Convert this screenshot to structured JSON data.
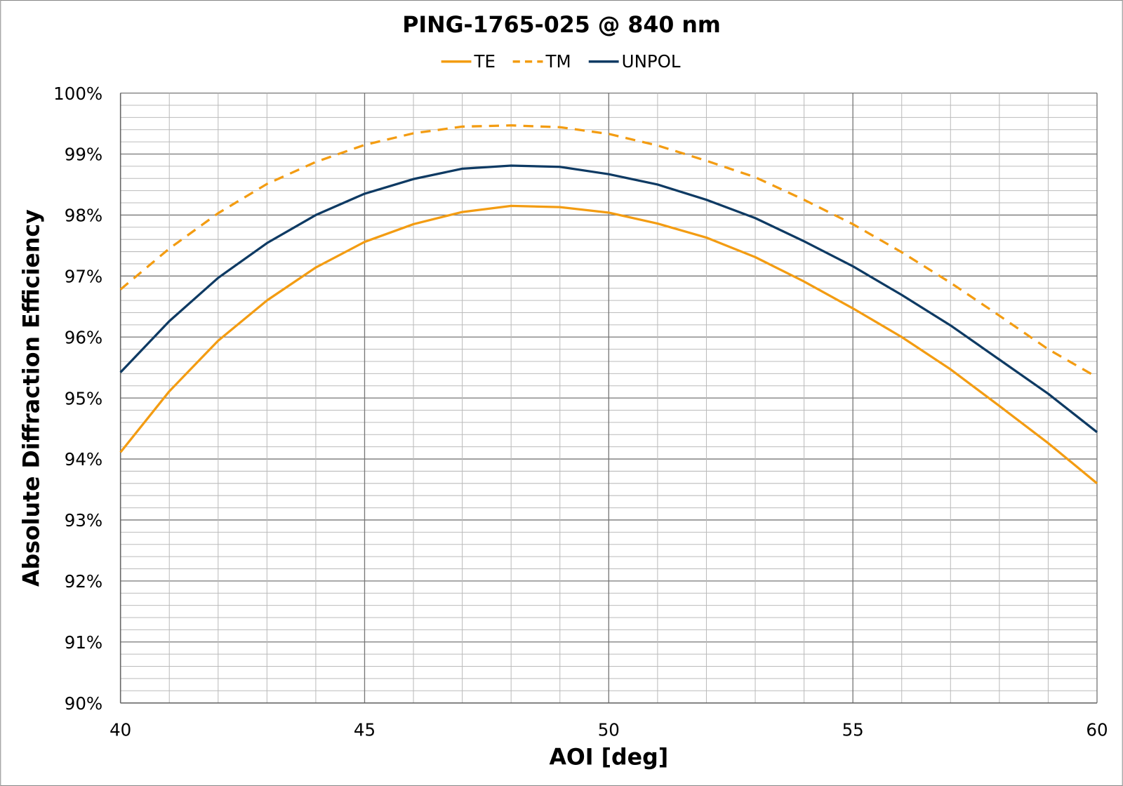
{
  "chart_data": {
    "type": "line",
    "title": "PING-1765-025 @ 840 nm",
    "xlabel": "AOI [deg]",
    "ylabel": "Absolute Diffraction Efficiency",
    "xlim": [
      40,
      60
    ],
    "ylim": [
      90,
      100
    ],
    "x_ticks": [
      "40",
      "45",
      "50",
      "55",
      "60"
    ],
    "y_ticks": [
      "90%",
      "91%",
      "92%",
      "93%",
      "94%",
      "95%",
      "96%",
      "97%",
      "98%",
      "99%",
      "100%"
    ],
    "grid": true,
    "legend_position": "top",
    "x": [
      40,
      41,
      42,
      43,
      44,
      45,
      46,
      47,
      48,
      49,
      50,
      51,
      52,
      53,
      54,
      55,
      56,
      57,
      58,
      59,
      60
    ],
    "series": [
      {
        "name": "TE",
        "color": "#F39C12",
        "style": "solid",
        "values": [
          94.11,
          95.11,
          95.94,
          96.6,
          97.14,
          97.56,
          97.85,
          98.05,
          98.15,
          98.13,
          98.04,
          97.86,
          97.63,
          97.31,
          96.91,
          96.47,
          96.0,
          95.47,
          94.87,
          94.26,
          93.6
        ]
      },
      {
        "name": "TM",
        "color": "#F39C12",
        "style": "dashed",
        "values": [
          96.78,
          97.45,
          98.03,
          98.51,
          98.87,
          99.15,
          99.34,
          99.45,
          99.47,
          99.44,
          99.33,
          99.14,
          98.89,
          98.62,
          98.25,
          97.85,
          97.39,
          96.89,
          96.35,
          95.8,
          95.34
        ]
      },
      {
        "name": "UNPOL",
        "color": "#0E3A63",
        "style": "solid",
        "values": [
          95.42,
          96.26,
          96.97,
          97.54,
          98.0,
          98.35,
          98.59,
          98.76,
          98.81,
          98.79,
          98.67,
          98.5,
          98.25,
          97.95,
          97.57,
          97.16,
          96.69,
          96.19,
          95.63,
          95.07,
          94.44
        ]
      }
    ]
  }
}
